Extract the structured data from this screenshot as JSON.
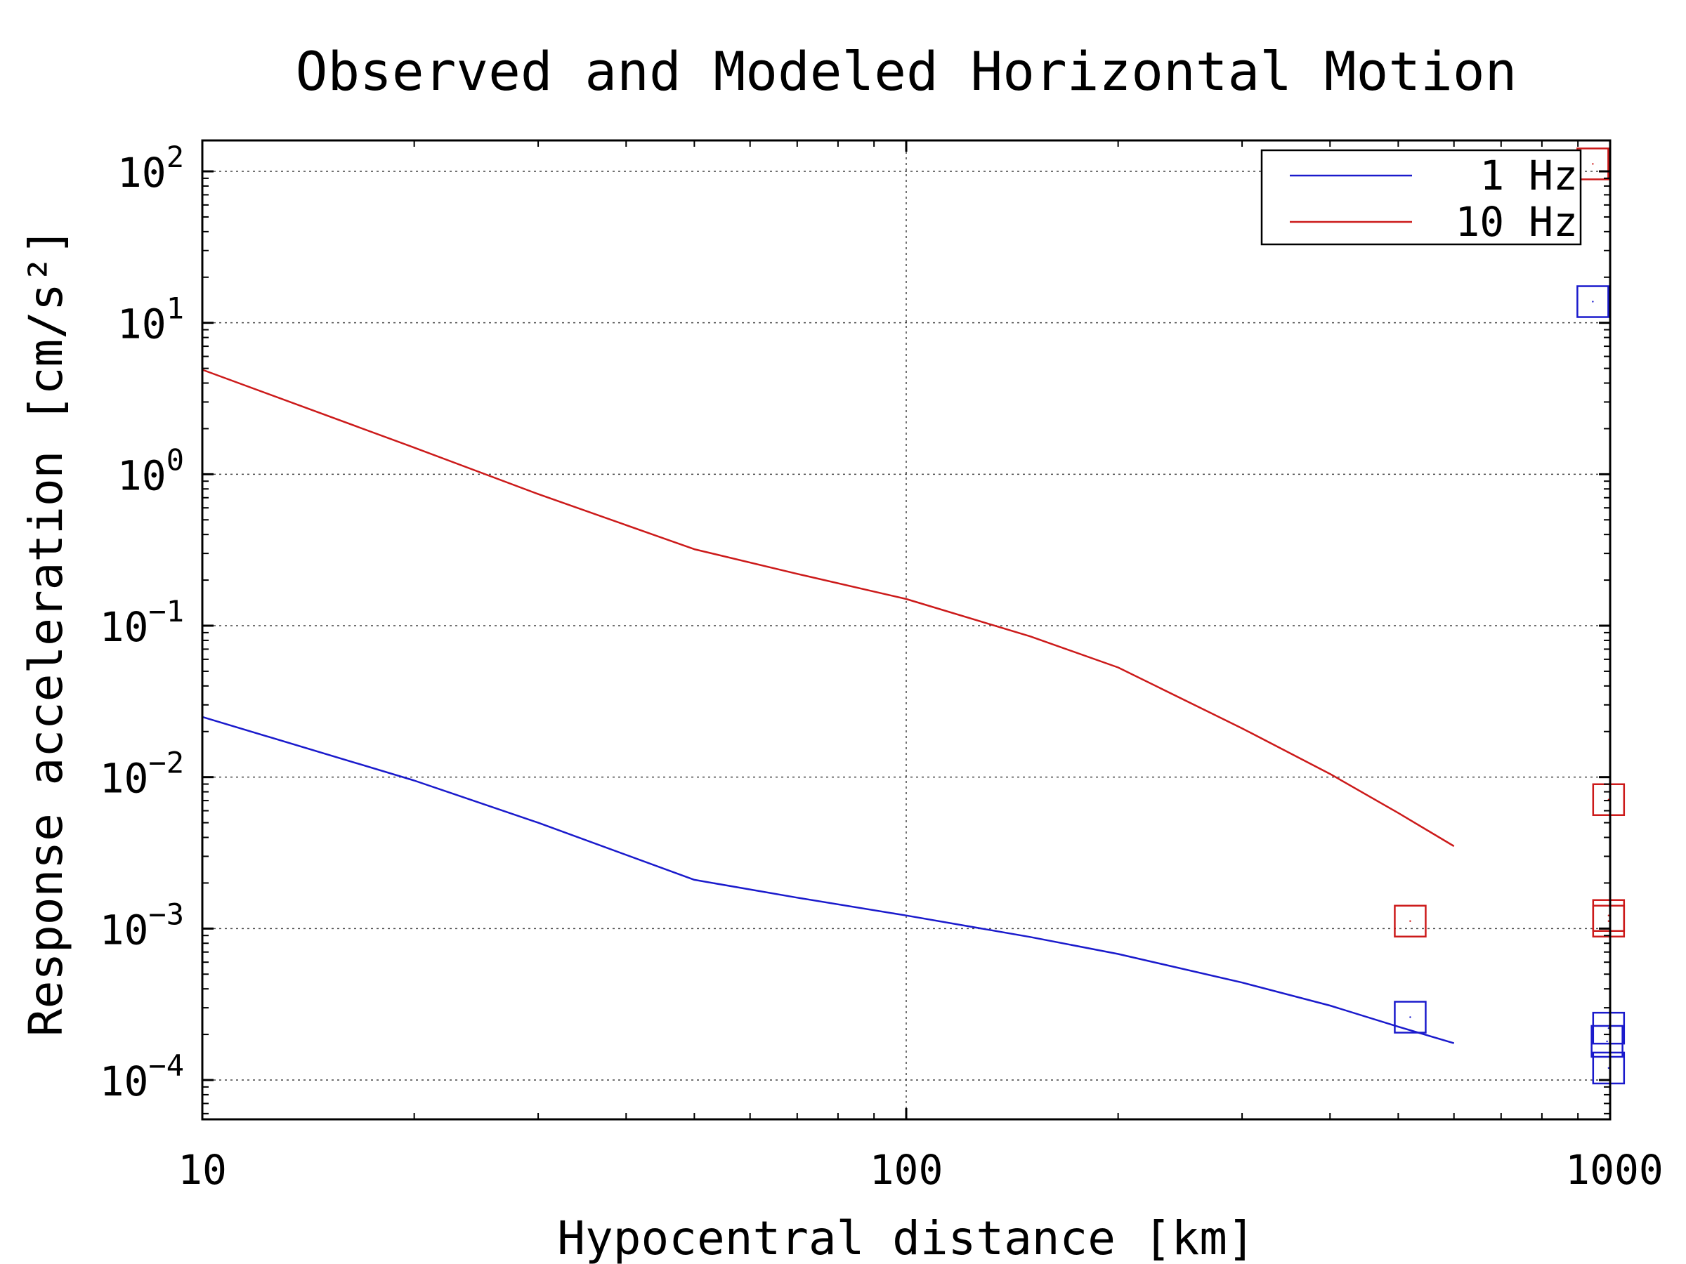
{
  "chart_data": {
    "type": "line",
    "title": "Observed and Modeled Horizontal Motion",
    "xlabel": "Hypocentral distance [km]",
    "ylabel": "Response acceleration [cm/s²]",
    "x_scale": "log",
    "y_scale": "log",
    "xlim": [
      10,
      1000
    ],
    "ylim": [
      5.5e-05,
      160
    ],
    "x_ticks": [
      {
        "value": 10,
        "label": "10"
      },
      {
        "value": 100,
        "label": "100"
      },
      {
        "value": 1000,
        "label": "1000"
      }
    ],
    "y_ticks": [
      {
        "value": 100,
        "base": "10",
        "exp": "2"
      },
      {
        "value": 10,
        "base": "10",
        "exp": "1"
      },
      {
        "value": 1,
        "base": "10",
        "exp": "0"
      },
      {
        "value": 0.1,
        "base": "10",
        "exp": "−1"
      },
      {
        "value": 0.01,
        "base": "10",
        "exp": "−2"
      },
      {
        "value": 0.001,
        "base": "10",
        "exp": "−3"
      },
      {
        "value": 0.0001,
        "base": "10",
        "exp": "−4"
      }
    ],
    "grid": true,
    "legend_position": "top-right",
    "series": [
      {
        "name": "1 Hz",
        "color": "#1a1acc",
        "kind": "line",
        "x": [
          10,
          20,
          30,
          50,
          70,
          100,
          150,
          200,
          300,
          400,
          500,
          600
        ],
        "y": [
          0.025,
          0.0095,
          0.005,
          0.0021,
          0.0016,
          0.00122,
          0.00088,
          0.00068,
          0.00044,
          0.00031,
          0.000225,
          0.000175
        ]
      },
      {
        "name": "10 Hz",
        "color": "#cc1a1a",
        "kind": "line",
        "x": [
          10,
          20,
          30,
          50,
          70,
          100,
          150,
          200,
          300,
          400,
          500,
          600
        ],
        "y": [
          4.9,
          1.5,
          0.74,
          0.32,
          0.22,
          0.15,
          0.085,
          0.053,
          0.021,
          0.0105,
          0.0058,
          0.0035
        ]
      }
    ],
    "observed": [
      {
        "series": "10 Hz",
        "color": "#cc1a1a",
        "x": 945,
        "y": 112
      },
      {
        "series": "1 Hz",
        "color": "#1a1acc",
        "x": 945,
        "y": 13.8
      },
      {
        "series": "10 Hz",
        "color": "#cc1a1a",
        "x": 995,
        "y": 0.0071
      },
      {
        "series": "10 Hz",
        "color": "#cc1a1a",
        "x": 520,
        "y": 0.00112
      },
      {
        "series": "10 Hz",
        "color": "#cc1a1a",
        "x": 995,
        "y": 0.00122
      },
      {
        "series": "10 Hz",
        "color": "#cc1a1a",
        "x": 995,
        "y": 0.00112
      },
      {
        "series": "1 Hz",
        "color": "#1a1acc",
        "x": 520,
        "y": 0.00026
      },
      {
        "series": "1 Hz",
        "color": "#1a1acc",
        "x": 995,
        "y": 0.00022
      },
      {
        "series": "1 Hz",
        "color": "#1a1acc",
        "x": 990,
        "y": 0.00018
      },
      {
        "series": "1 Hz",
        "color": "#1a1acc",
        "x": 995,
        "y": 0.00012
      }
    ]
  }
}
